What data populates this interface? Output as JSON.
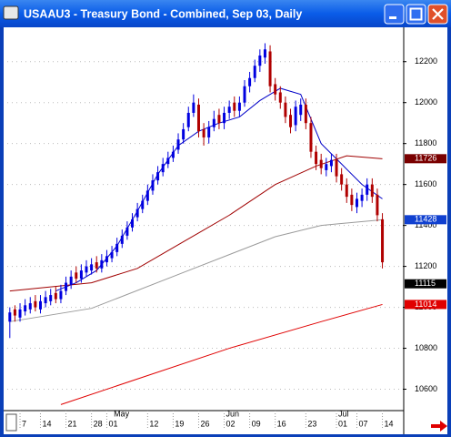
{
  "window": {
    "title": "USAAU3 - Treasury Bond - Combined, Sep 03, Daily"
  },
  "chart_data": {
    "type": "candlestick",
    "up_color": "#0000e0",
    "down_color": "#b00000",
    "grid": true,
    "xlim": [
      -0.5,
      77
    ],
    "ylim": [
      10500,
      12350
    ],
    "yticks": [
      10600,
      10800,
      11000,
      11200,
      11400,
      11600,
      11800,
      12000,
      12200
    ],
    "xticks": [
      {
        "value": 2,
        "label": "7"
      },
      {
        "value": 6,
        "label": "14"
      },
      {
        "value": 11,
        "label": "21"
      },
      {
        "value": 16,
        "label": "28"
      },
      {
        "value": 19,
        "label": "01"
      },
      {
        "value": 27,
        "label": "12"
      },
      {
        "value": 32,
        "label": "19"
      },
      {
        "value": 37,
        "label": "26"
      },
      {
        "value": 42,
        "label": "02"
      },
      {
        "value": 47,
        "label": "09"
      },
      {
        "value": 52,
        "label": "16"
      },
      {
        "value": 58,
        "label": "23"
      },
      {
        "value": 64,
        "label": "01"
      },
      {
        "value": 68,
        "label": "07"
      },
      {
        "value": 73,
        "label": "14"
      }
    ],
    "months": [
      {
        "value": 20,
        "label": "May"
      },
      {
        "value": 42,
        "label": "Jun"
      },
      {
        "value": 64,
        "label": "Jul"
      }
    ],
    "open": [
      10930,
      10990,
      10950,
      10980,
      10990,
      11030,
      10990,
      11020,
      11030,
      11070,
      11040,
      11080,
      11110,
      11170,
      11140,
      11170,
      11180,
      11220,
      11190,
      11220,
      11240,
      11270,
      11310,
      11350,
      11390,
      11440,
      11480,
      11520,
      11570,
      11620,
      11660,
      11700,
      11730,
      11770,
      11820,
      11880,
      11950,
      11990,
      11870,
      11830,
      11880,
      11940,
      11900,
      11950,
      12000,
      11960,
      12000,
      12080,
      12120,
      12180,
      12220,
      12250,
      12090,
      12050,
      12000,
      11940,
      11890,
      11940,
      11990,
      11900,
      11760,
      11720,
      11670,
      11690,
      11720,
      11650,
      11600,
      11550,
      11490,
      11520,
      11550,
      11600,
      11550,
      11430
    ],
    "high": [
      11000,
      11010,
      11020,
      11040,
      11050,
      11060,
      11060,
      11080,
      11090,
      11100,
      11110,
      11150,
      11180,
      11200,
      11210,
      11230,
      11240,
      11250,
      11260,
      11280,
      11300,
      11340,
      11380,
      11420,
      11460,
      11510,
      11550,
      11600,
      11650,
      11690,
      11730,
      11760,
      11790,
      11850,
      11900,
      11980,
      12040,
      12020,
      11900,
      11910,
      11960,
      11970,
      11980,
      12010,
      12030,
      12030,
      12110,
      12150,
      12210,
      12260,
      12290,
      12280,
      12120,
      12080,
      12030,
      11970,
      12010,
      12020,
      12020,
      11930,
      11790,
      11750,
      11730,
      11750,
      11750,
      11680,
      11630,
      11580,
      11560,
      11580,
      11630,
      11630,
      11580,
      11460
    ],
    "low": [
      10850,
      10930,
      10930,
      10960,
      10970,
      10980,
      10970,
      11000,
      11010,
      11020,
      11020,
      11060,
      11090,
      11120,
      11120,
      11150,
      11160,
      11170,
      11170,
      11200,
      11220,
      11250,
      11290,
      11330,
      11370,
      11420,
      11460,
      11500,
      11550,
      11600,
      11640,
      11680,
      11710,
      11750,
      11800,
      11860,
      11930,
      11830,
      11790,
      11800,
      11860,
      11870,
      11870,
      11920,
      11930,
      11930,
      11980,
      12050,
      12100,
      12150,
      12190,
      12050,
      12010,
      11970,
      11900,
      11850,
      11860,
      11910,
      11870,
      11730,
      11670,
      11650,
      11640,
      11660,
      11610,
      11570,
      11510,
      11470,
      11460,
      11490,
      11520,
      11510,
      11420,
      11190
    ],
    "close": [
      10975,
      10960,
      10990,
      11010,
      11020,
      11000,
      11030,
      11050,
      11060,
      11040,
      11080,
      11120,
      11150,
      11140,
      11180,
      11200,
      11210,
      11190,
      11230,
      11250,
      11270,
      11310,
      11350,
      11390,
      11430,
      11480,
      11520,
      11570,
      11620,
      11660,
      11700,
      11730,
      11760,
      11820,
      11870,
      11950,
      12000,
      11860,
      11830,
      11880,
      11920,
      11900,
      11950,
      11980,
      11960,
      12000,
      12080,
      12120,
      12180,
      12230,
      12260,
      12080,
      12040,
      12000,
      11930,
      11880,
      11980,
      11990,
      11900,
      11760,
      11700,
      11680,
      11700,
      11720,
      11640,
      11600,
      11540,
      11500,
      11530,
      11550,
      11600,
      11540,
      11450,
      11220
    ],
    "series": [
      {
        "color": "#0000c8",
        "x": [
          9,
          13,
          17,
          21,
          25,
          29,
          33,
          37,
          41,
          45,
          49,
          53,
          57,
          61,
          65,
          69,
          73
        ],
        "values": [
          11080,
          11120,
          11180,
          11300,
          11470,
          11650,
          11790,
          11860,
          11900,
          11930,
          12010,
          12070,
          12040,
          11800,
          11700,
          11600,
          11530
        ]
      },
      {
        "color": "#a00000",
        "x": [
          0,
          16,
          25,
          34,
          43,
          52,
          60,
          66,
          73
        ],
        "values": [
          11080,
          11120,
          11190,
          11320,
          11450,
          11600,
          11690,
          11740,
          11726
        ]
      },
      {
        "color": "#9a9a9a",
        "x": [
          0,
          16,
          34,
          52,
          61,
          73
        ],
        "values": [
          10930,
          10995,
          11170,
          11345,
          11400,
          11428
        ]
      },
      {
        "color": "#e00000",
        "x": [
          10,
          25,
          43,
          61,
          73
        ],
        "values": [
          10525,
          10650,
          10800,
          10930,
          11014
        ]
      }
    ],
    "price_labels": [
      {
        "value": 11726,
        "color": "#7a0000"
      },
      {
        "value": 11428,
        "color": "#1040d0"
      },
      {
        "value": 11115,
        "color": "#000000"
      },
      {
        "value": 11014,
        "color": "#e00000"
      }
    ]
  }
}
